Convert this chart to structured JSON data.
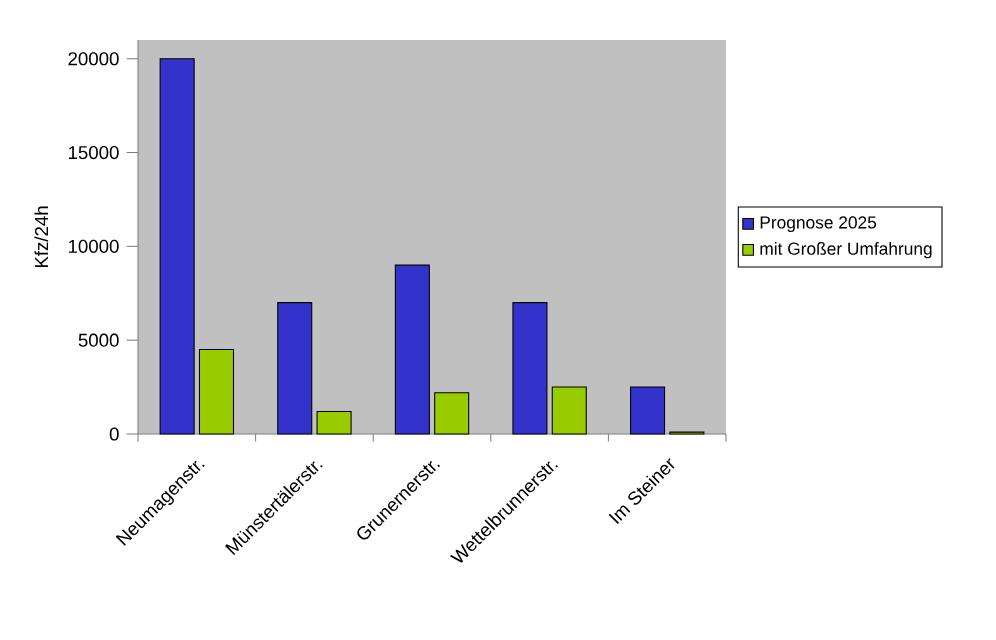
{
  "chart_data": {
    "type": "bar",
    "ylabel": "Kfz/24h",
    "categories": [
      "Neumagenstr.",
      "Münstertälerstr.",
      "Grunernerstr.",
      "Wettelbrunnerstr.",
      "Im Steiner"
    ],
    "series": [
      {
        "name": "Prognose 2025",
        "color": "#3333cc",
        "values": [
          20000,
          7000,
          9000,
          7000,
          2500
        ]
      },
      {
        "name": "mit Großer Umfahrung",
        "color": "#99cc00",
        "values": [
          4500,
          1200,
          2200,
          2500,
          100
        ]
      }
    ],
    "ylim": [
      0,
      21000
    ],
    "yticks": [
      0,
      5000,
      10000,
      15000,
      20000
    ],
    "grid": false,
    "legend": "right"
  }
}
